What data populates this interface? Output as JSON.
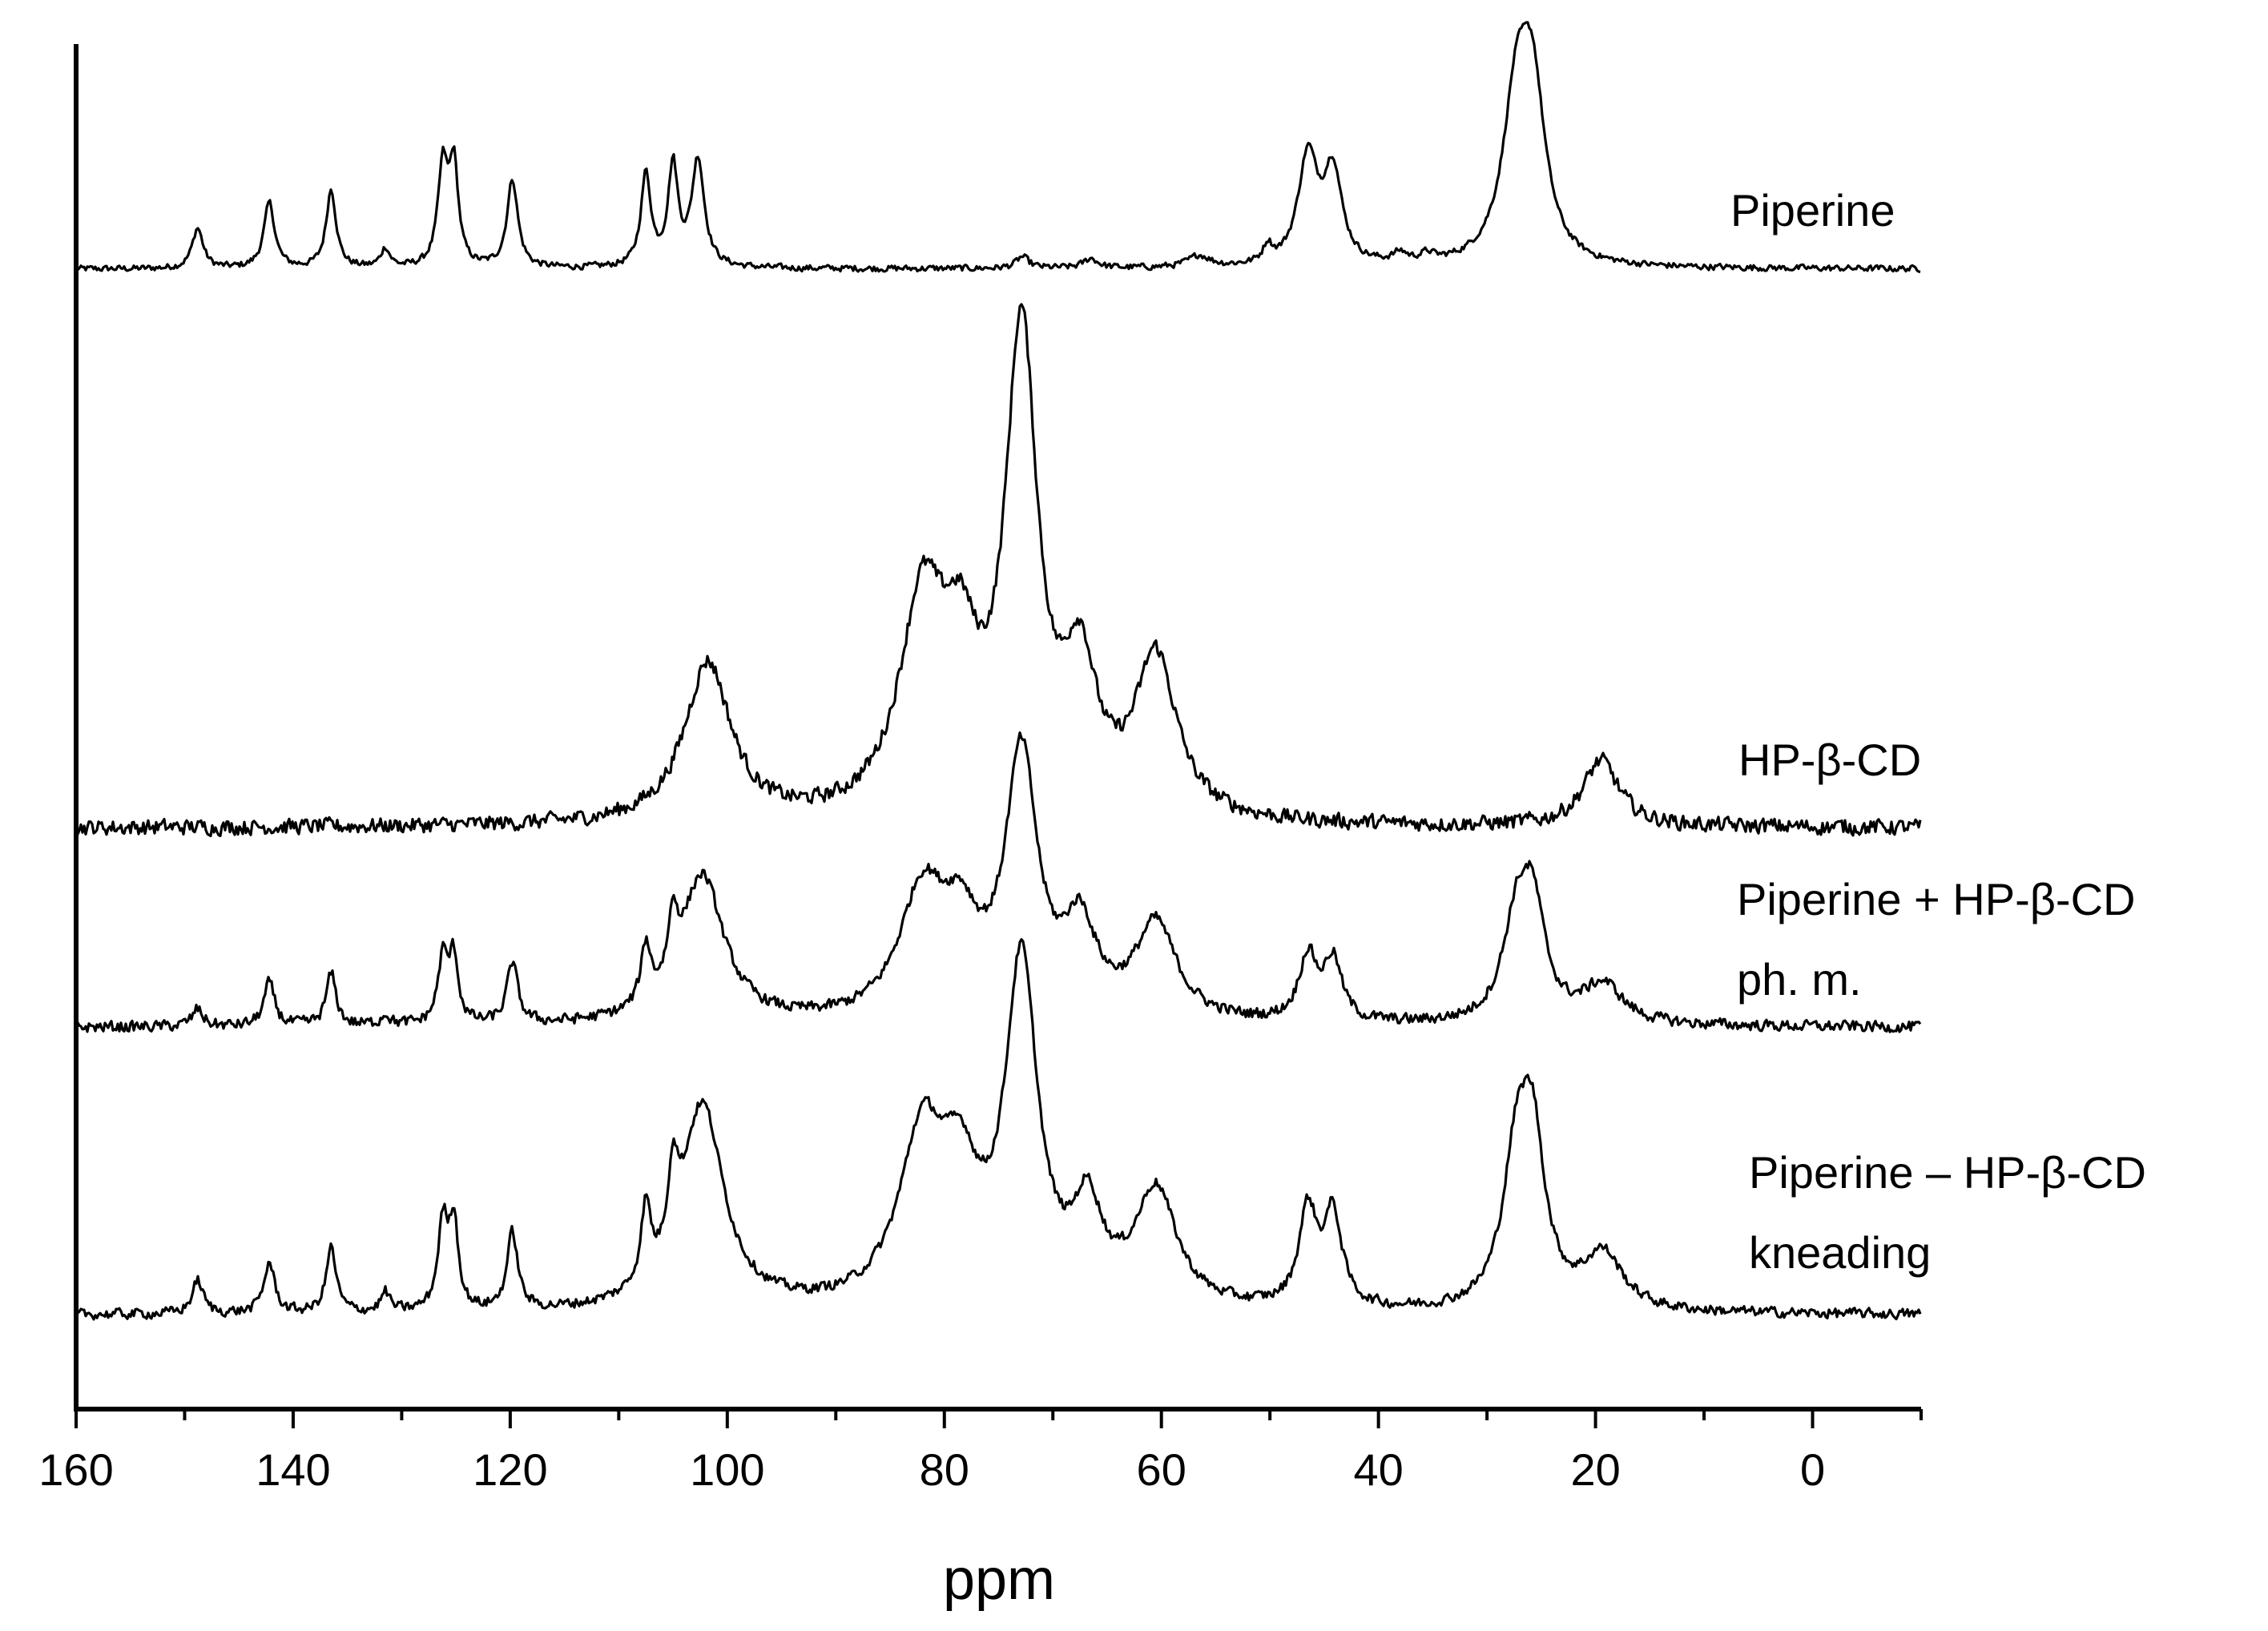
{
  "chart_data": {
    "type": "line",
    "title": "",
    "xlabel": "ppm",
    "ylabel": "",
    "xlim": [
      160,
      -10
    ],
    "x_reversed": true,
    "xticks": [
      160,
      140,
      120,
      100,
      80,
      60,
      40,
      20,
      0
    ],
    "xtick_labels": [
      "160",
      "140",
      "120",
      "100",
      "80",
      "60",
      "40",
      "20",
      "0"
    ],
    "y_axis_ticks": false,
    "grid": false,
    "legend": "none",
    "line_color": "#000000",
    "series": [
      {
        "name": "Piperine",
        "label_lines": [
          "Piperine"
        ],
        "noise": 0.014,
        "peaks": [
          {
            "ppm": 148.8,
            "height": 0.21,
            "width": 0.6
          },
          {
            "ppm": 142.2,
            "height": 0.34,
            "width": 0.6
          },
          {
            "ppm": 136.5,
            "height": 0.41,
            "width": 0.55
          },
          {
            "ppm": 131.5,
            "height": 0.1,
            "width": 0.5
          },
          {
            "ppm": 126.2,
            "height": 0.51,
            "width": 0.55
          },
          {
            "ppm": 125.2,
            "height": 0.51,
            "width": 0.5
          },
          {
            "ppm": 119.8,
            "height": 0.46,
            "width": 0.6
          },
          {
            "ppm": 107.5,
            "height": 0.48,
            "width": 0.55
          },
          {
            "ppm": 105.0,
            "height": 0.52,
            "width": 0.55
          },
          {
            "ppm": 102.7,
            "height": 0.56,
            "width": 0.7
          },
          {
            "ppm": 72.8,
            "height": 0.06,
            "width": 0.7
          },
          {
            "ppm": 66.5,
            "height": 0.05,
            "width": 0.8
          },
          {
            "ppm": 56.5,
            "height": 0.06,
            "width": 1.2
          },
          {
            "ppm": 50.2,
            "height": 0.09,
            "width": 0.5
          },
          {
            "ppm": 46.5,
            "height": 0.56,
            "width": 1.1
          },
          {
            "ppm": 44.2,
            "height": 0.48,
            "width": 1.0
          },
          {
            "ppm": 38.0,
            "height": 0.05,
            "width": 0.8
          },
          {
            "ppm": 35.5,
            "height": 0.04,
            "width": 0.8
          },
          {
            "ppm": 27.3,
            "height": 0.78,
            "width": 1.5
          },
          {
            "ppm": 25.8,
            "height": 0.82,
            "width": 1.4
          }
        ]
      },
      {
        "name": "HP-β-CD",
        "label_lines": [
          "HP-β-CD"
        ],
        "noise": 0.03,
        "peaks": [
          {
            "ppm": 101.8,
            "height": 0.73,
            "width": 2.6
          },
          {
            "ppm": 82.0,
            "height": 0.95,
            "width": 2.6
          },
          {
            "ppm": 78.5,
            "height": 0.55,
            "width": 2.0
          },
          {
            "ppm": 72.9,
            "height": 2.15,
            "width": 1.8
          },
          {
            "ppm": 67.5,
            "height": 0.62,
            "width": 1.8
          },
          {
            "ppm": 60.5,
            "height": 0.72,
            "width": 2.3
          },
          {
            "ppm": 19.5,
            "height": 0.3,
            "width": 2.0
          }
        ]
      },
      {
        "name": "Piperine + HP-β-CD ph. m.",
        "label_lines": [
          "Piperine + HP-β-CD",
          "ph. m."
        ],
        "noise": 0.022,
        "peaks": [
          {
            "ppm": 148.8,
            "height": 0.08,
            "width": 0.6
          },
          {
            "ppm": 142.2,
            "height": 0.2,
            "width": 0.6
          },
          {
            "ppm": 136.5,
            "height": 0.24,
            "width": 0.55
          },
          {
            "ppm": 131.5,
            "height": 0.05,
            "width": 0.5
          },
          {
            "ppm": 126.2,
            "height": 0.3,
            "width": 0.55
          },
          {
            "ppm": 125.2,
            "height": 0.3,
            "width": 0.5
          },
          {
            "ppm": 119.8,
            "height": 0.28,
            "width": 0.6
          },
          {
            "ppm": 107.5,
            "height": 0.27,
            "width": 0.55
          },
          {
            "ppm": 105.0,
            "height": 0.28,
            "width": 0.55
          },
          {
            "ppm": 102.3,
            "height": 0.68,
            "width": 2.4
          },
          {
            "ppm": 82.0,
            "height": 0.58,
            "width": 2.6
          },
          {
            "ppm": 78.5,
            "height": 0.35,
            "width": 2.0
          },
          {
            "ppm": 72.9,
            "height": 1.2,
            "width": 1.8
          },
          {
            "ppm": 67.5,
            "height": 0.4,
            "width": 1.8
          },
          {
            "ppm": 60.5,
            "height": 0.44,
            "width": 2.3
          },
          {
            "ppm": 46.5,
            "height": 0.3,
            "width": 1.0
          },
          {
            "ppm": 44.2,
            "height": 0.28,
            "width": 1.0
          },
          {
            "ppm": 27.3,
            "height": 0.42,
            "width": 1.5
          },
          {
            "ppm": 25.8,
            "height": 0.49,
            "width": 1.4
          },
          {
            "ppm": 19.3,
            "height": 0.18,
            "width": 2.2
          }
        ]
      },
      {
        "name": "Piperine – HP-β-CD kneading",
        "label_lines": [
          "Piperine – HP-β-CD",
          "kneading"
        ],
        "noise": 0.018,
        "peaks": [
          {
            "ppm": 148.8,
            "height": 0.14,
            "width": 0.6
          },
          {
            "ppm": 142.2,
            "height": 0.21,
            "width": 0.6
          },
          {
            "ppm": 136.5,
            "height": 0.27,
            "width": 0.55
          },
          {
            "ppm": 131.5,
            "height": 0.08,
            "width": 0.5
          },
          {
            "ppm": 126.2,
            "height": 0.36,
            "width": 0.55
          },
          {
            "ppm": 125.2,
            "height": 0.36,
            "width": 0.5
          },
          {
            "ppm": 119.8,
            "height": 0.32,
            "width": 0.6
          },
          {
            "ppm": 107.5,
            "height": 0.32,
            "width": 0.55
          },
          {
            "ppm": 105.0,
            "height": 0.33,
            "width": 0.55
          },
          {
            "ppm": 102.3,
            "height": 0.85,
            "width": 2.4
          },
          {
            "ppm": 82.0,
            "height": 0.7,
            "width": 2.6
          },
          {
            "ppm": 78.5,
            "height": 0.42,
            "width": 2.0
          },
          {
            "ppm": 72.9,
            "height": 1.4,
            "width": 1.8
          },
          {
            "ppm": 66.8,
            "height": 0.37,
            "width": 1.6
          },
          {
            "ppm": 60.5,
            "height": 0.48,
            "width": 2.3
          },
          {
            "ppm": 46.5,
            "height": 0.4,
            "width": 1.0
          },
          {
            "ppm": 44.2,
            "height": 0.38,
            "width": 1.0
          },
          {
            "ppm": 27.3,
            "height": 0.56,
            "width": 1.5
          },
          {
            "ppm": 25.8,
            "height": 0.64,
            "width": 1.4
          },
          {
            "ppm": 19.3,
            "height": 0.23,
            "width": 2.2
          }
        ]
      }
    ]
  }
}
